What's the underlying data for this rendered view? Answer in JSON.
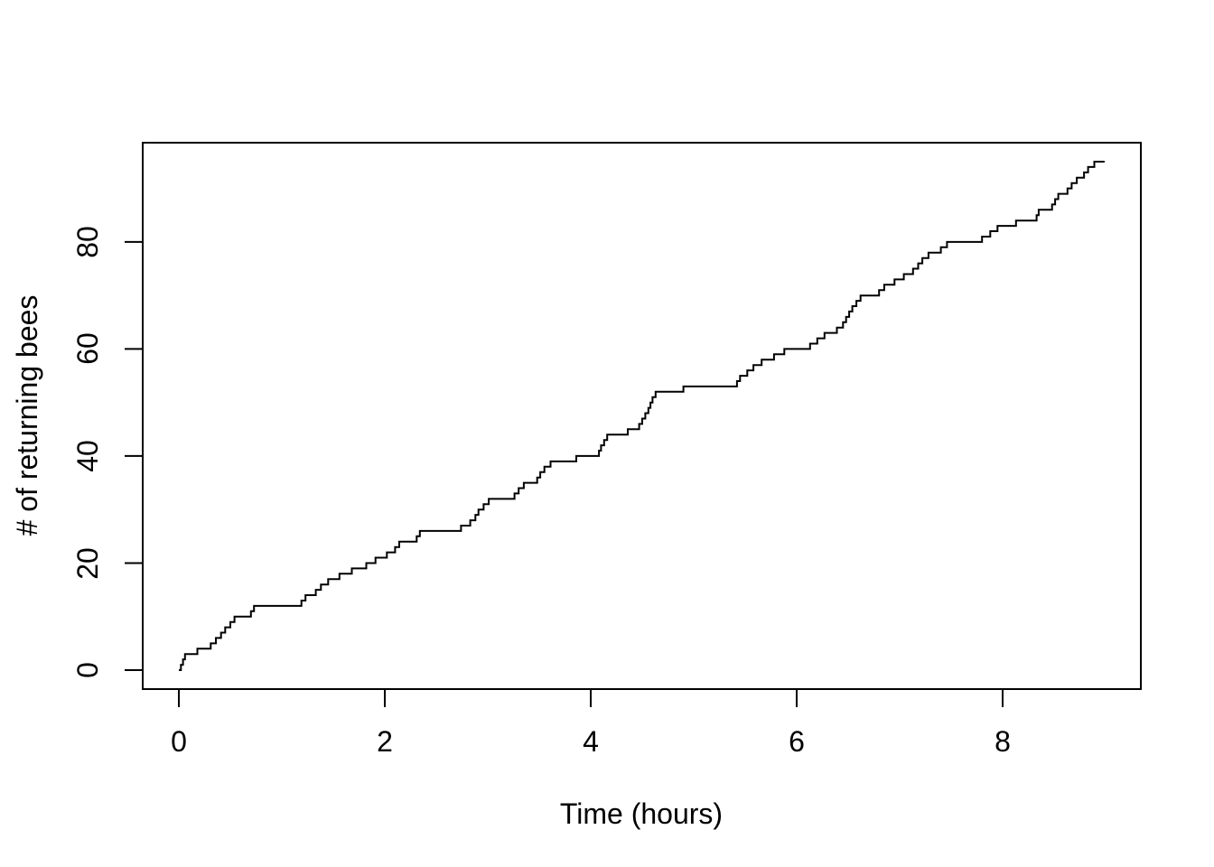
{
  "figure": {
    "background_color": "#ffffff",
    "line_color": "#000000",
    "text_color": "#000000"
  },
  "chart_data": {
    "type": "line",
    "subtype": "step-cumulative-count",
    "title": "",
    "xlabel": "Time (hours)",
    "ylabel": "# of returning bees",
    "x_ticks": [
      0,
      2,
      4,
      6,
      8
    ],
    "y_ticks": [
      0,
      20,
      40,
      60,
      80
    ],
    "xlim": [
      -0.35,
      9.34
    ],
    "ylim": [
      -3.5,
      98.5
    ],
    "grid": false,
    "legend": false,
    "start_time": 0,
    "start_count": 0,
    "end_time": 8.99,
    "final_count": 95,
    "arrival_times": [
      0.02,
      0.04,
      0.06,
      0.18,
      0.31,
      0.36,
      0.41,
      0.45,
      0.5,
      0.54,
      0.7,
      0.73,
      1.19,
      1.23,
      1.33,
      1.38,
      1.45,
      1.56,
      1.68,
      1.82,
      1.91,
      2.02,
      2.1,
      2.14,
      2.31,
      2.34,
      2.74,
      2.83,
      2.88,
      2.91,
      2.96,
      3.01,
      3.26,
      3.3,
      3.35,
      3.48,
      3.51,
      3.55,
      3.61,
      3.86,
      4.08,
      4.1,
      4.13,
      4.16,
      4.36,
      4.47,
      4.5,
      4.53,
      4.56,
      4.58,
      4.6,
      4.63,
      4.9,
      5.42,
      5.45,
      5.52,
      5.58,
      5.66,
      5.78,
      5.88,
      6.13,
      6.2,
      6.27,
      6.39,
      6.45,
      6.48,
      6.51,
      6.54,
      6.58,
      6.62,
      6.8,
      6.85,
      6.95,
      7.04,
      7.13,
      7.18,
      7.22,
      7.28,
      7.4,
      7.46,
      7.8,
      7.88,
      7.95,
      8.13,
      8.33,
      8.35,
      8.48,
      8.51,
      8.54,
      8.63,
      8.67,
      8.72,
      8.79,
      8.83,
      8.89
    ]
  }
}
